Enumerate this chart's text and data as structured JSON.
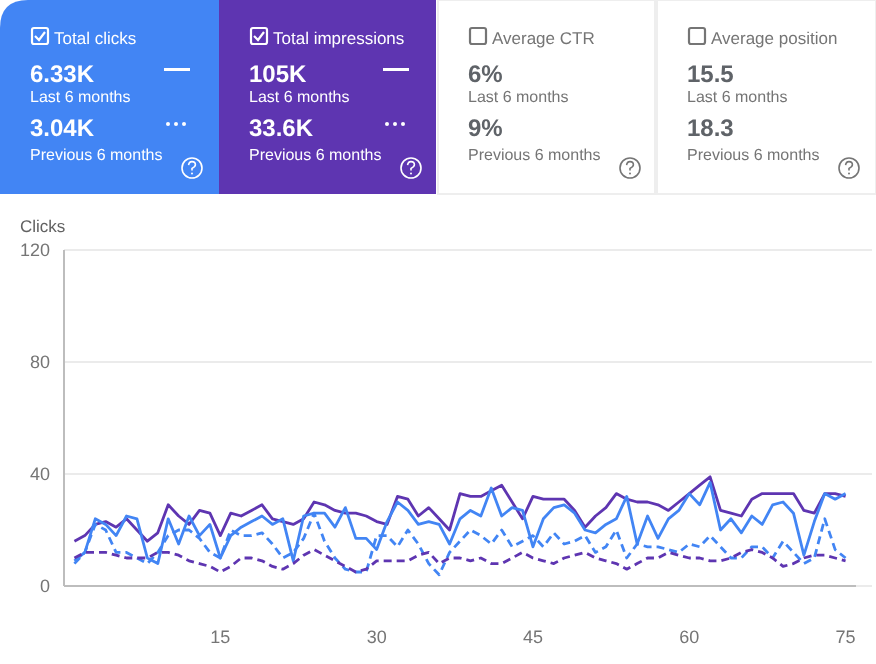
{
  "chart_data": [
    {
      "type": "other",
      "colors": [
        "#4285f4",
        "#5e35b1",
        "#ffffff",
        "#ffffff"
      ],
      "annotations": [
        "Total clicks",
        "6.33K",
        "Last 6 months",
        "3.04K",
        "Previous 6 months",
        "Total impressions",
        "105K",
        "Last 6 months",
        "33.6K",
        "Previous 6 months",
        "Average CTR",
        "6%",
        "Last 6 months",
        "9%",
        "Previous 6 months",
        "Average position",
        "15.5",
        "Last 6 months",
        "18.3",
        "Previous 6 months"
      ]
    },
    {
      "type": "line",
      "ylabel": "Clicks",
      "xlim": [
        0,
        76
      ],
      "xticks": [
        15,
        30,
        45,
        60,
        75
      ],
      "ylim": [
        0,
        120
      ],
      "yticks": [
        0,
        40,
        80,
        120
      ],
      "grid": "y",
      "x": [
        1,
        2,
        3,
        4,
        5,
        6,
        7,
        8,
        9,
        10,
        11,
        12,
        13,
        14,
        15,
        16,
        17,
        18,
        19,
        20,
        21,
        22,
        23,
        24,
        25,
        26,
        27,
        28,
        29,
        30,
        31,
        32,
        33,
        34,
        35,
        36,
        37,
        38,
        39,
        40,
        41,
        42,
        43,
        44,
        45,
        46,
        47,
        48,
        49,
        50,
        51,
        52,
        53,
        54,
        55,
        56,
        57,
        58,
        59,
        60,
        61,
        62,
        63,
        64,
        65,
        66,
        67,
        68,
        69,
        70,
        71,
        72,
        73,
        74,
        75
      ],
      "series": [
        {
          "color": "#5e35b1",
          "line_style": "solid",
          "values": [
            16,
            18,
            22,
            23,
            21,
            24,
            20,
            16,
            19,
            29,
            25,
            22,
            27,
            26,
            18,
            26,
            25,
            27,
            29,
            24,
            23,
            22,
            24,
            30,
            29,
            27,
            26,
            26,
            25,
            23,
            22,
            32,
            31,
            25,
            28,
            24,
            20,
            33,
            32,
            32,
            34,
            36,
            30,
            24,
            32,
            31,
            31,
            31,
            27,
            21,
            25,
            28,
            33,
            31,
            30,
            30,
            29,
            27,
            30,
            33,
            36,
            39,
            27,
            26,
            25,
            31,
            33,
            33,
            33,
            33,
            27,
            26,
            33,
            33,
            32
          ]
        },
        {
          "color": "#4285f4",
          "line_style": "solid",
          "values": [
            9,
            12,
            24,
            22,
            18,
            25,
            24,
            10,
            8,
            24,
            15,
            25,
            18,
            22,
            10,
            18,
            21,
            23,
            25,
            22,
            24,
            9,
            25,
            26,
            26,
            21,
            28,
            17,
            17,
            13,
            23,
            30,
            27,
            22,
            23,
            22,
            15,
            24,
            27,
            25,
            35,
            25,
            28,
            27,
            14,
            24,
            28,
            29,
            26,
            20,
            19,
            22,
            24,
            32,
            15,
            25,
            17,
            24,
            27,
            33,
            29,
            37,
            20,
            24,
            19,
            25,
            22,
            29,
            30,
            26,
            11,
            23,
            33,
            31,
            33
          ]
        },
        {
          "color": "#4285f4",
          "line_style": "dashed",
          "values": [
            8,
            12,
            22,
            20,
            12,
            12,
            10,
            8,
            12,
            18,
            20,
            20,
            17,
            12,
            10,
            20,
            18,
            18,
            19,
            15,
            10,
            12,
            17,
            26,
            16,
            10,
            6,
            5,
            5,
            18,
            18,
            14,
            20,
            15,
            8,
            4,
            12,
            16,
            20,
            18,
            15,
            20,
            14,
            16,
            18,
            14,
            19,
            15,
            16,
            18,
            12,
            14,
            20,
            10,
            15,
            14,
            14,
            13,
            12,
            15,
            14,
            18,
            14,
            10,
            10,
            14,
            14,
            10,
            16,
            12,
            8,
            10,
            24,
            13,
            10
          ]
        },
        {
          "color": "#5e35b1",
          "line_style": "dashed",
          "values": [
            10,
            12,
            12,
            12,
            11,
            10,
            10,
            10,
            12,
            12,
            11,
            9,
            8,
            7,
            5,
            7,
            10,
            10,
            9,
            7,
            6,
            8,
            11,
            13,
            11,
            9,
            7,
            5,
            6,
            9,
            9,
            9,
            9,
            11,
            12,
            8,
            10,
            10,
            9,
            10,
            8,
            8,
            10,
            12,
            10,
            9,
            8,
            10,
            11,
            12,
            10,
            9,
            8,
            6,
            8,
            10,
            10,
            12,
            11,
            10,
            10,
            9,
            9,
            10,
            12,
            13,
            12,
            10,
            7,
            8,
            10,
            11,
            11,
            10,
            9
          ]
        }
      ]
    }
  ]
}
